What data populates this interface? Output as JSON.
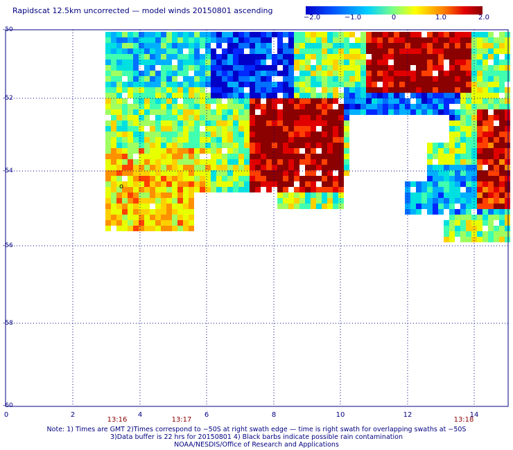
{
  "title": "Rapidscat 12.5km uncorrected — model winds 20150801 ascending",
  "colorbar": {
    "ticks": [
      "−2.0",
      "−1.0",
      "0",
      "1.0",
      "2.0"
    ],
    "min": -2.0,
    "max": 2.0
  },
  "map": {
    "lat_labels": [
      "-50",
      "-52",
      "-54",
      "-56",
      "-58",
      "-60"
    ],
    "lon_labels": [
      "0",
      "2",
      "4",
      "6",
      "8",
      "10",
      "12",
      "14"
    ],
    "time_labels": [
      "13:16",
      "13:17",
      "13:18"
    ],
    "marker": "o"
  },
  "footer": {
    "line1": "Note: 1) Times are GMT 2)Times correspond to −50S at right swath edge — time is right swath for overlapping swaths at −50S",
    "line2": "3)Data buffer is 22 hrs for 20150801 4) Black barbs indicate possible rain contamination",
    "line3": "NOAA/NESDIS/Office of Research and Applications"
  },
  "colors": {
    "frame": "#000080",
    "grid": "#000080",
    "time": "#8b0000",
    "max_speed_diff": "#8b0000",
    "min_speed_diff": "#0000cd"
  }
}
